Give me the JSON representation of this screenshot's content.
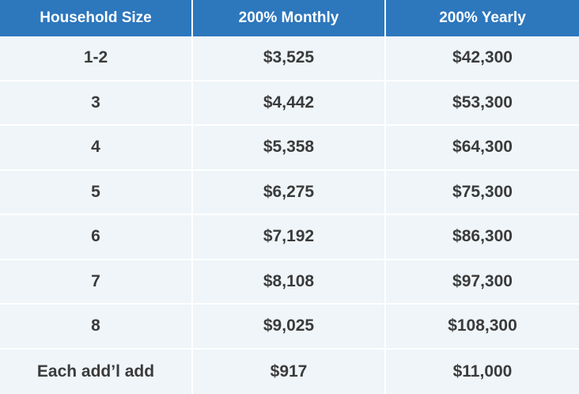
{
  "colors": {
    "header_bg": "#2d77bd",
    "header_text": "#ffffff",
    "row_bg": "#eff5f9",
    "divider": "#ffffff",
    "body_text": "#3b3b3b"
  },
  "chart_data": {
    "type": "table",
    "columns": [
      "Household Size",
      "200% Monthly",
      "200% Yearly"
    ],
    "rows": [
      [
        "1-2",
        "$3,525",
        "$42,300"
      ],
      [
        "3",
        "$4,442",
        "$53,300"
      ],
      [
        "4",
        "$5,358",
        "$64,300"
      ],
      [
        "5",
        "$6,275",
        "$75,300"
      ],
      [
        "6",
        "$7,192",
        "$86,300"
      ],
      [
        "7",
        "$8,108",
        "$97,300"
      ],
      [
        "8",
        "$9,025",
        "$108,300"
      ],
      [
        "Each add’l add",
        "$917",
        "$11,000"
      ]
    ]
  }
}
